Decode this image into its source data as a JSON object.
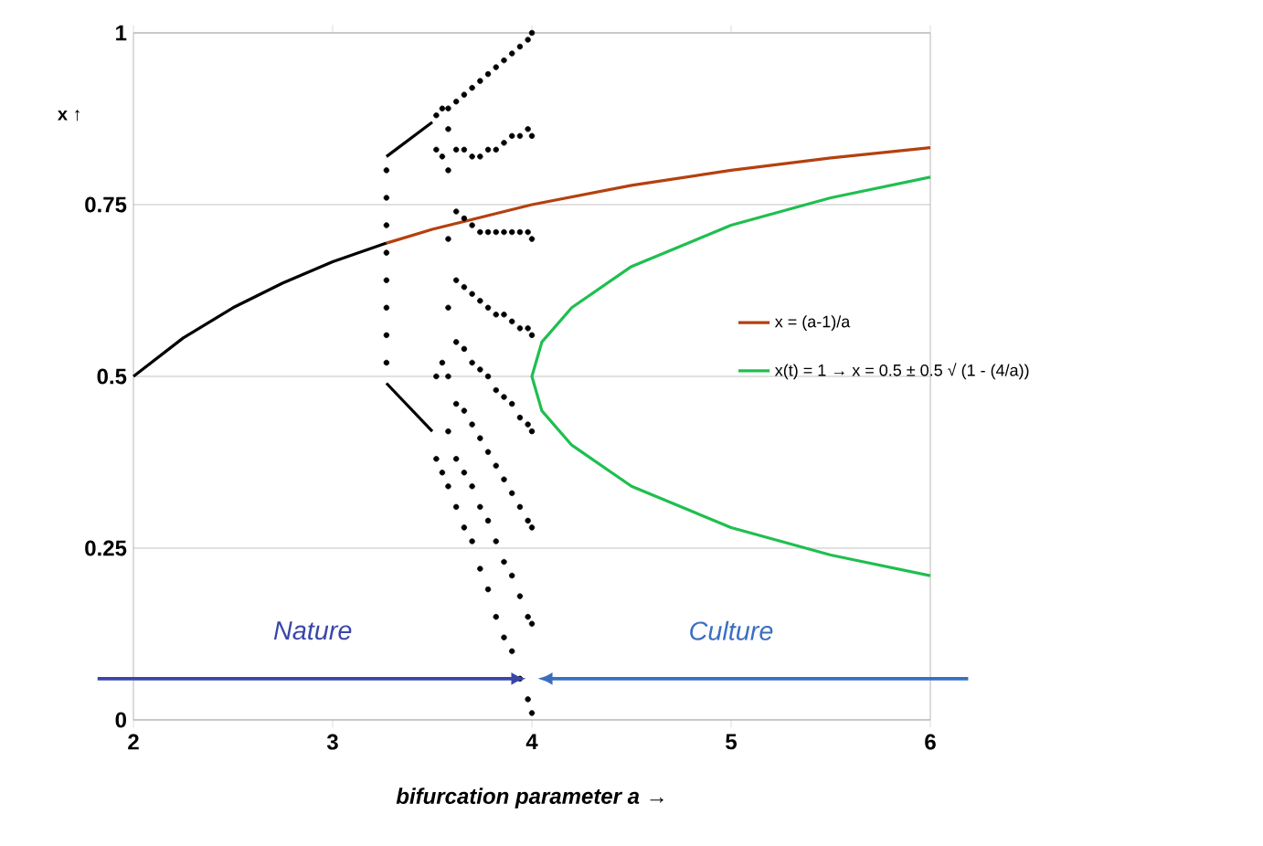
{
  "chart_data": {
    "type": "line",
    "xlabel": "bifurcation parameter a →",
    "ylabel": "x ↑",
    "xlim": [
      2,
      6
    ],
    "xticks": [
      2,
      3,
      4,
      5,
      6
    ],
    "ylim": [
      0,
      1
    ],
    "yticks": [
      0,
      0.25,
      0.5,
      0.75,
      1
    ],
    "grid": "y",
    "legend": "right",
    "annotations": [
      "Nature",
      "Culture"
    ],
    "series": [
      {
        "color": "#000000",
        "x": [
          2,
          2.25,
          2.5,
          2.75,
          3,
          3.27
        ],
        "values": [
          0.5,
          0.556,
          0.6,
          0.636,
          0.667,
          0.694
        ]
      },
      {
        "color": "#000000",
        "x": [
          3.27,
          3.5
        ],
        "values": [
          0.82,
          0.87
        ]
      },
      {
        "color": "#000000",
        "x": [
          3.27,
          3.5
        ],
        "values": [
          0.49,
          0.42
        ]
      },
      {
        "type": "scatter",
        "color": "#000000",
        "marker": "circle",
        "x": [
          3.27,
          3.27,
          3.27,
          3.27,
          3.27,
          3.27,
          3.27,
          3.27,
          3.52,
          3.52,
          3.55,
          3.55,
          3.52,
          3.52,
          3.55,
          3.55,
          3.58,
          3.58,
          3.58,
          3.58,
          3.58,
          3.58,
          3.58,
          3.58,
          3.62,
          3.62,
          3.62,
          3.62,
          3.62,
          3.62,
          3.62,
          3.62,
          3.66,
          3.66,
          3.66,
          3.66,
          3.66,
          3.66,
          3.66,
          3.66,
          3.7,
          3.7,
          3.7,
          3.7,
          3.7,
          3.7,
          3.7,
          3.7,
          3.74,
          3.74,
          3.74,
          3.74,
          3.74,
          3.74,
          3.74,
          3.74,
          3.78,
          3.78,
          3.78,
          3.78,
          3.78,
          3.78,
          3.78,
          3.78,
          3.82,
          3.82,
          3.82,
          3.82,
          3.82,
          3.82,
          3.82,
          3.82,
          3.86,
          3.86,
          3.86,
          3.86,
          3.86,
          3.86,
          3.86,
          3.86,
          3.9,
          3.9,
          3.9,
          3.9,
          3.9,
          3.9,
          3.9,
          3.9,
          3.94,
          3.94,
          3.94,
          3.94,
          3.94,
          3.94,
          3.94,
          3.94,
          3.98,
          3.98,
          3.98,
          3.98,
          3.98,
          3.98,
          3.98,
          3.98,
          4,
          4,
          4,
          4,
          4,
          4,
          4,
          4
        ],
        "values": [
          0.52,
          0.56,
          0.6,
          0.64,
          0.68,
          0.72,
          0.76,
          0.8,
          0.88,
          0.83,
          0.89,
          0.82,
          0.5,
          0.38,
          0.52,
          0.36,
          0.34,
          0.42,
          0.5,
          0.6,
          0.7,
          0.8,
          0.86,
          0.89,
          0.31,
          0.38,
          0.46,
          0.55,
          0.64,
          0.74,
          0.83,
          0.9,
          0.28,
          0.36,
          0.45,
          0.54,
          0.63,
          0.73,
          0.83,
          0.91,
          0.26,
          0.34,
          0.43,
          0.52,
          0.62,
          0.72,
          0.82,
          0.92,
          0.22,
          0.31,
          0.41,
          0.51,
          0.61,
          0.71,
          0.82,
          0.93,
          0.19,
          0.29,
          0.39,
          0.5,
          0.6,
          0.71,
          0.83,
          0.94,
          0.15,
          0.26,
          0.37,
          0.48,
          0.59,
          0.71,
          0.83,
          0.95,
          0.12,
          0.23,
          0.35,
          0.47,
          0.59,
          0.71,
          0.84,
          0.96,
          0.1,
          0.21,
          0.33,
          0.46,
          0.58,
          0.71,
          0.85,
          0.97,
          0.06,
          0.18,
          0.31,
          0.44,
          0.57,
          0.71,
          0.85,
          0.98,
          0.03,
          0.15,
          0.29,
          0.43,
          0.57,
          0.71,
          0.86,
          0.99,
          0.01,
          0.14,
          0.28,
          0.42,
          0.56,
          0.7,
          0.85,
          1
        ]
      },
      {
        "name": "x = (a-1)/a",
        "color": "#b5400f",
        "x": [
          3.27,
          3.5,
          4,
          4.5,
          5,
          5.5,
          6
        ],
        "values": [
          0.694,
          0.714,
          0.75,
          0.778,
          0.8,
          0.818,
          0.833
        ]
      },
      {
        "name": "x(t) = 1 → x = 0.5 ± 0.5 √ (1 - (4/a))",
        "color": "#1fbf4f",
        "x": [
          6,
          5.5,
          5,
          4.5,
          4.2,
          4.05,
          4,
          4.05,
          4.2,
          4.5,
          5,
          5.5,
          6
        ],
        "values": [
          0.79,
          0.76,
          0.72,
          0.66,
          0.6,
          0.55,
          0.5,
          0.45,
          0.4,
          0.34,
          0.28,
          0.24,
          0.21
        ]
      }
    ]
  }
}
